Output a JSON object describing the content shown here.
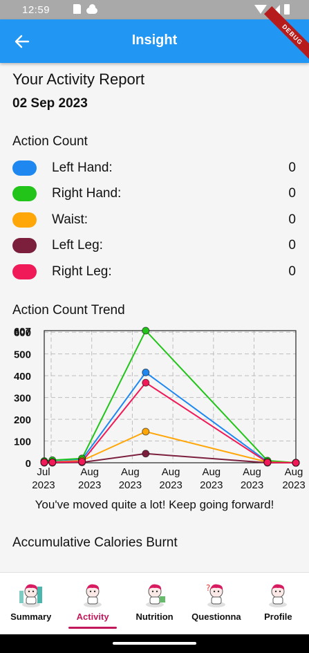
{
  "status_bar": {
    "time": "12:59"
  },
  "app_bar": {
    "title": "Insight",
    "debug_label": "DEBUG"
  },
  "report": {
    "title": "Your Activity Report",
    "date": "02 Sep 2023"
  },
  "action_count": {
    "title": "Action Count",
    "items": [
      {
        "label": "Left Hand:",
        "value": "0",
        "color": "#1e88f0"
      },
      {
        "label": "Right Hand:",
        "value": "0",
        "color": "#22c41a"
      },
      {
        "label": "Waist:",
        "value": "0",
        "color": "#ffa708"
      },
      {
        "label": "Left Leg:",
        "value": "0",
        "color": "#7b1f3d"
      },
      {
        "label": "Right Leg:",
        "value": "0",
        "color": "#ef1a57"
      }
    ]
  },
  "trend": {
    "title": "Action Count Trend",
    "message": "You've moved quite a lot! Keep going forward!"
  },
  "chart_data": {
    "type": "line",
    "title": "",
    "xlabel": "",
    "ylabel": "",
    "ylim": [
      0,
      607
    ],
    "yticks": [
      "0",
      "100",
      "200",
      "300",
      "400",
      "500",
      "600",
      "607"
    ],
    "x_ticks": [
      [
        "Jul",
        "2023"
      ],
      [
        "Aug",
        "2023"
      ],
      [
        "Aug",
        "2023"
      ],
      [
        "Aug",
        "2023"
      ],
      [
        "Aug",
        "2023"
      ],
      [
        "Aug",
        "2023"
      ],
      [
        "Aug",
        "2023"
      ]
    ],
    "x": [
      0,
      0.2,
      0.93,
      2.5,
      5.5,
      6.2
    ],
    "grid": true,
    "legend": "none",
    "series": [
      {
        "color": "#1e88f0",
        "values": [
          5,
          5,
          15,
          415,
          5,
          0
        ]
      },
      {
        "color": "#22c41a",
        "values": [
          8,
          12,
          20,
          607,
          10,
          0
        ]
      },
      {
        "color": "#ffa708",
        "values": [
          3,
          3,
          10,
          143,
          3,
          0
        ]
      },
      {
        "color": "#7b1f3d",
        "values": [
          0,
          0,
          2,
          42,
          0,
          0
        ]
      },
      {
        "color": "#ef1a57",
        "values": [
          2,
          2,
          5,
          368,
          2,
          0
        ]
      }
    ]
  },
  "calories": {
    "title": "Accumulative Calories Burnt"
  },
  "bottom_nav": {
    "items": [
      {
        "label": "Summary",
        "active": false,
        "icon": "summary-icon"
      },
      {
        "label": "Activity",
        "active": true,
        "icon": "activity-icon"
      },
      {
        "label": "Nutrition",
        "active": false,
        "icon": "nutrition-icon"
      },
      {
        "label": "Questionna",
        "active": false,
        "icon": "questionnaire-icon"
      },
      {
        "label": "Profile",
        "active": false,
        "icon": "profile-icon"
      }
    ]
  }
}
